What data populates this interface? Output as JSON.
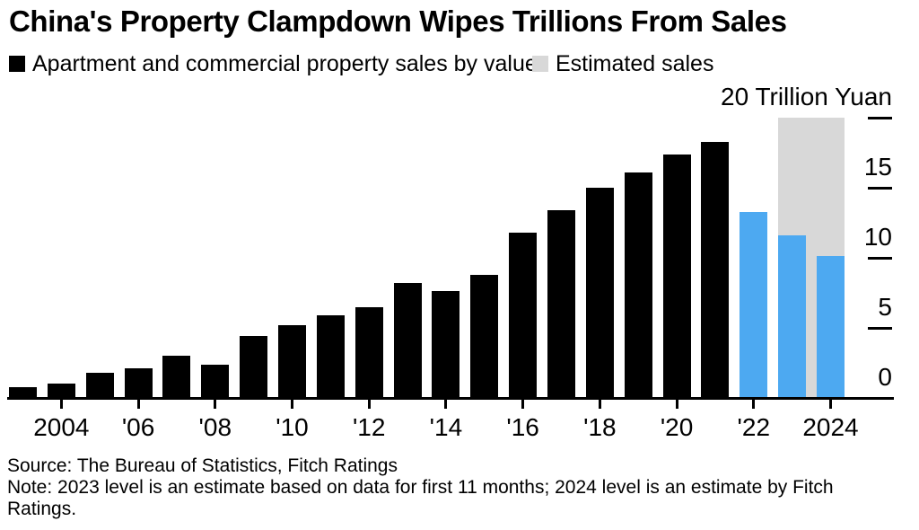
{
  "title": "China's Property Clampdown Wipes Trillions From Sales",
  "legend": [
    {
      "label": "Apartment and commercial property sales by value",
      "color": "#000000"
    },
    {
      "label": "Estimated sales",
      "color": "#d8d8d8"
    }
  ],
  "source_line": "Source: The Bureau of Statistics, Fitch Ratings",
  "note_line": "Note: 2023 level is an estimate based on data for first 11 months; 2024 level is an estimate by Fitch Ratings.",
  "colors": {
    "actual": "#000000",
    "highlight": "#4da9f1",
    "estimate": "#d8d8d8",
    "axis": "#000000"
  },
  "chart_data": {
    "type": "bar",
    "title": "China's Property Clampdown Wipes Trillions From Sales",
    "unit_label": "20 Trillion Yuan",
    "ylabel": "Trillion Yuan",
    "ylim": [
      0,
      20
    ],
    "grid": false,
    "legend_position": "top-left",
    "bars": [
      {
        "year": 2003,
        "value": 0.8,
        "series": "actual"
      },
      {
        "year": 2004,
        "value": 1.0,
        "series": "actual"
      },
      {
        "year": 2005,
        "value": 1.8,
        "series": "actual"
      },
      {
        "year": 2006,
        "value": 2.1,
        "series": "actual"
      },
      {
        "year": 2007,
        "value": 3.0,
        "series": "actual"
      },
      {
        "year": 2008,
        "value": 2.4,
        "series": "actual"
      },
      {
        "year": 2009,
        "value": 4.4,
        "series": "actual"
      },
      {
        "year": 2010,
        "value": 5.2,
        "series": "actual"
      },
      {
        "year": 2011,
        "value": 5.9,
        "series": "actual"
      },
      {
        "year": 2012,
        "value": 6.5,
        "series": "actual"
      },
      {
        "year": 2013,
        "value": 8.2,
        "series": "actual"
      },
      {
        "year": 2014,
        "value": 7.6,
        "series": "actual"
      },
      {
        "year": 2015,
        "value": 8.8,
        "series": "actual"
      },
      {
        "year": 2016,
        "value": 11.8,
        "series": "actual"
      },
      {
        "year": 2017,
        "value": 13.4,
        "series": "actual"
      },
      {
        "year": 2018,
        "value": 15.0,
        "series": "actual"
      },
      {
        "year": 2019,
        "value": 16.1,
        "series": "actual"
      },
      {
        "year": 2020,
        "value": 17.4,
        "series": "actual"
      },
      {
        "year": 2021,
        "value": 18.3,
        "series": "actual"
      },
      {
        "year": 2022,
        "value": 13.3,
        "series": "highlight"
      },
      {
        "year": 2023,
        "value": 11.6,
        "series": "highlight"
      },
      {
        "year": 2024,
        "value": 10.1,
        "series": "highlight"
      }
    ],
    "estimated_bar": {
      "label": "Estimated sales",
      "from_year": 2023,
      "to_year": 2024,
      "value": 20.0,
      "series": "estimate"
    },
    "xticks": [
      {
        "year": 2004,
        "label": "2004"
      },
      {
        "year": 2006,
        "label": "'06"
      },
      {
        "year": 2008,
        "label": "'08"
      },
      {
        "year": 2010,
        "label": "'10"
      },
      {
        "year": 2012,
        "label": "'12"
      },
      {
        "year": 2014,
        "label": "'14"
      },
      {
        "year": 2016,
        "label": "'16"
      },
      {
        "year": 2018,
        "label": "'18"
      },
      {
        "year": 2020,
        "label": "'20"
      },
      {
        "year": 2022,
        "label": "'22"
      },
      {
        "year": 2024,
        "label": "2024"
      }
    ],
    "yticks": [
      {
        "value": 0,
        "label": "0"
      },
      {
        "value": 5,
        "label": "5"
      },
      {
        "value": 10,
        "label": "10"
      },
      {
        "value": 15,
        "label": "15"
      },
      {
        "value": 20,
        "label": "20 Trillion Yuan"
      }
    ]
  }
}
